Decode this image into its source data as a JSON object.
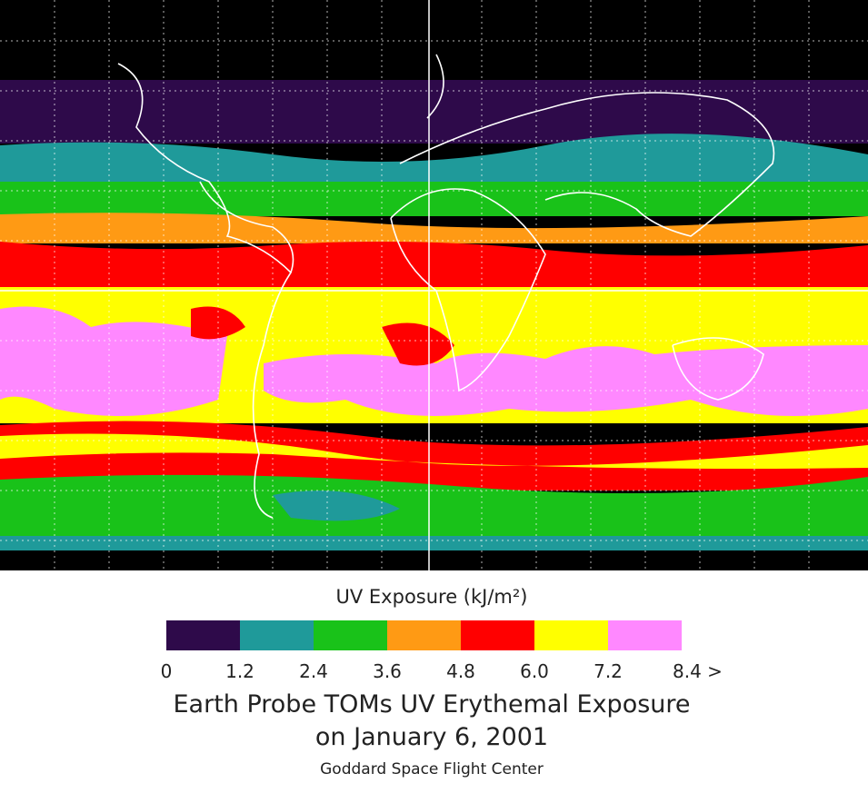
{
  "legend": {
    "title": "UV Exposure (kJ/m²)",
    "colors": [
      "#2e0a4a",
      "#1f9a9a",
      "#19c219",
      "#ff9a14",
      "#ff0000",
      "#ffff00",
      "#ff88ff"
    ],
    "labels": [
      "0",
      "1.2",
      "2.4",
      "3.6",
      "4.8",
      "6.0",
      "7.2",
      "8.4 >"
    ]
  },
  "caption": {
    "title_line1": "Earth Probe TOMs UV Erythemal Exposure",
    "title_line2": "on January 6, 2001",
    "credit": "Goddard Space Flight Center"
  }
}
